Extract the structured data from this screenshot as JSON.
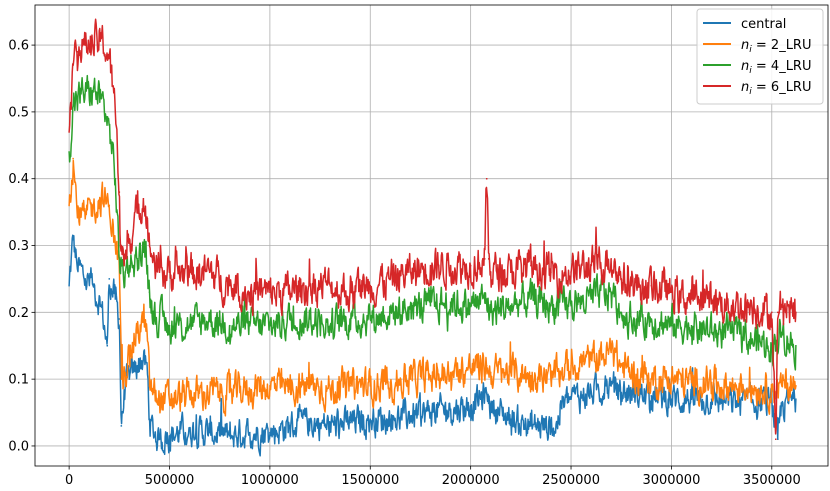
{
  "chart_data": {
    "type": "line",
    "title": "",
    "xlabel": "",
    "ylabel": "",
    "xlim": [
      -170000,
      3780000
    ],
    "ylim": [
      -0.03,
      0.66
    ],
    "grid": true,
    "legend_position": "top-right",
    "x_ticks": [
      0,
      500000,
      1000000,
      1500000,
      2000000,
      2500000,
      3000000,
      3500000
    ],
    "x_tick_labels": [
      "0",
      "500000",
      "1000000",
      "1500000",
      "2000000",
      "2500000",
      "3000000",
      "3500000"
    ],
    "y_ticks": [
      0.0,
      0.1,
      0.2,
      0.3,
      0.4,
      0.5,
      0.6
    ],
    "y_tick_labels": [
      "0.0",
      "0.1",
      "0.2",
      "0.3",
      "0.4",
      "0.5",
      "0.6"
    ],
    "series": [
      {
        "name": "central",
        "legend_html": "central",
        "color": "#1f77b4",
        "noise": 0.018,
        "x": [
          0,
          20000,
          40000,
          80000,
          120000,
          160000,
          190000,
          200000,
          230000,
          250000,
          260000,
          280000,
          300000,
          340000,
          370000,
          390000,
          400000,
          420000,
          450000,
          500000,
          600000,
          700000,
          800000,
          900000,
          1000000,
          1100000,
          1200000,
          1300000,
          1400000,
          1500000,
          1600000,
          1700000,
          1800000,
          1900000,
          2000000,
          2050000,
          2080000,
          2100000,
          2200000,
          2300000,
          2400000,
          2430000,
          2450000,
          2500000,
          2600000,
          2700000,
          2750000,
          2800000,
          2900000,
          3000000,
          3100000,
          3200000,
          3300000,
          3400000,
          3500000,
          3530000,
          3550000,
          3580000,
          3620000
        ],
        "y": [
          0.24,
          0.31,
          0.27,
          0.25,
          0.24,
          0.21,
          0.15,
          0.25,
          0.22,
          0.19,
          0.03,
          0.09,
          0.1,
          0.12,
          0.13,
          0.11,
          0.04,
          0.02,
          0.01,
          0.015,
          0.025,
          0.02,
          0.015,
          0.02,
          0.02,
          0.03,
          0.035,
          0.03,
          0.035,
          0.04,
          0.04,
          0.045,
          0.05,
          0.055,
          0.06,
          0.07,
          0.08,
          0.06,
          0.04,
          0.03,
          0.03,
          0.03,
          0.06,
          0.07,
          0.08,
          0.09,
          0.08,
          0.08,
          0.075,
          0.07,
          0.07,
          0.07,
          0.065,
          0.065,
          0.065,
          0.01,
          0.06,
          0.065,
          0.07
        ]
      },
      {
        "name": "n_i = 2_LRU",
        "legend_html": "<tspan font-style=\"italic\">n</tspan><tspan font-style=\"italic\" font-size=\"9\" dy=\"3\">i</tspan><tspan dy=\"-3\"> = 2_LRU</tspan>",
        "color": "#ff7f0e",
        "noise": 0.02,
        "x": [
          0,
          20000,
          40000,
          80000,
          120000,
          160000,
          200000,
          230000,
          250000,
          260000,
          280000,
          300000,
          340000,
          370000,
          390000,
          400000,
          420000,
          450000,
          500000,
          600000,
          700000,
          800000,
          900000,
          1000000,
          1100000,
          1200000,
          1300000,
          1400000,
          1500000,
          1600000,
          1700000,
          1800000,
          1900000,
          2000000,
          2080000,
          2100000,
          2200000,
          2300000,
          2400000,
          2450000,
          2500000,
          2600000,
          2700000,
          2750000,
          2800000,
          2900000,
          3000000,
          3100000,
          3200000,
          3300000,
          3400000,
          3500000,
          3550000,
          3620000
        ],
        "y": [
          0.36,
          0.43,
          0.35,
          0.34,
          0.36,
          0.37,
          0.36,
          0.3,
          0.27,
          0.1,
          0.11,
          0.14,
          0.17,
          0.19,
          0.16,
          0.09,
          0.08,
          0.07,
          0.07,
          0.075,
          0.08,
          0.08,
          0.085,
          0.09,
          0.085,
          0.09,
          0.085,
          0.09,
          0.09,
          0.095,
          0.1,
          0.105,
          0.11,
          0.115,
          0.12,
          0.11,
          0.11,
          0.105,
          0.1,
          0.11,
          0.12,
          0.13,
          0.14,
          0.12,
          0.11,
          0.1,
          0.1,
          0.095,
          0.095,
          0.09,
          0.09,
          0.085,
          0.09,
          0.09
        ]
      },
      {
        "name": "n_i = 4_LRU",
        "legend_html": "<tspan font-style=\"italic\">n</tspan><tspan font-style=\"italic\" font-size=\"9\" dy=\"3\">i</tspan><tspan dy=\"-3\"> = 4_LRU</tspan>",
        "color": "#2ca02c",
        "noise": 0.02,
        "x": [
          0,
          20000,
          40000,
          80000,
          120000,
          160000,
          200000,
          230000,
          250000,
          260000,
          280000,
          300000,
          340000,
          370000,
          390000,
          400000,
          420000,
          450000,
          500000,
          600000,
          700000,
          800000,
          900000,
          1000000,
          1100000,
          1200000,
          1300000,
          1400000,
          1500000,
          1600000,
          1700000,
          1800000,
          1900000,
          2000000,
          2080000,
          2100000,
          2200000,
          2300000,
          2400000,
          2500000,
          2600000,
          2700000,
          2750000,
          2800000,
          2900000,
          3000000,
          3100000,
          3200000,
          3300000,
          3400000,
          3500000,
          3550000,
          3620000
        ],
        "y": [
          0.44,
          0.51,
          0.52,
          0.53,
          0.53,
          0.52,
          0.48,
          0.4,
          0.28,
          0.27,
          0.26,
          0.27,
          0.28,
          0.29,
          0.27,
          0.23,
          0.2,
          0.19,
          0.18,
          0.18,
          0.19,
          0.18,
          0.18,
          0.18,
          0.19,
          0.19,
          0.18,
          0.19,
          0.19,
          0.2,
          0.205,
          0.21,
          0.215,
          0.21,
          0.22,
          0.2,
          0.21,
          0.22,
          0.21,
          0.21,
          0.22,
          0.23,
          0.2,
          0.19,
          0.19,
          0.18,
          0.18,
          0.17,
          0.17,
          0.16,
          0.15,
          0.17,
          0.15
        ]
      },
      {
        "name": "n_i = 6_LRU",
        "legend_html": "<tspan font-style=\"italic\">n</tspan><tspan font-style=\"italic\" font-size=\"9\" dy=\"3\">i</tspan><tspan dy=\"-3\"> = 6_LRU</tspan>",
        "color": "#d62728",
        "noise": 0.022,
        "x": [
          0,
          20000,
          40000,
          80000,
          120000,
          160000,
          200000,
          230000,
          250000,
          260000,
          280000,
          300000,
          340000,
          370000,
          390000,
          400000,
          420000,
          450000,
          500000,
          600000,
          700000,
          800000,
          900000,
          1000000,
          1100000,
          1200000,
          1300000,
          1400000,
          1500000,
          1600000,
          1700000,
          1800000,
          1900000,
          2000000,
          2070000,
          2080000,
          2090000,
          2100000,
          2200000,
          2300000,
          2400000,
          2500000,
          2600000,
          2700000,
          2750000,
          2800000,
          2900000,
          3000000,
          3100000,
          3200000,
          3300000,
          3400000,
          3500000,
          3520000,
          3530000,
          3550000,
          3580000,
          3620000
        ],
        "y": [
          0.47,
          0.57,
          0.59,
          0.6,
          0.6,
          0.61,
          0.58,
          0.5,
          0.38,
          0.3,
          0.28,
          0.31,
          0.35,
          0.37,
          0.34,
          0.3,
          0.28,
          0.26,
          0.26,
          0.26,
          0.26,
          0.24,
          0.23,
          0.23,
          0.23,
          0.24,
          0.24,
          0.23,
          0.24,
          0.25,
          0.26,
          0.27,
          0.27,
          0.27,
          0.28,
          0.4,
          0.28,
          0.26,
          0.26,
          0.27,
          0.26,
          0.26,
          0.27,
          0.28,
          0.25,
          0.24,
          0.24,
          0.23,
          0.22,
          0.22,
          0.21,
          0.21,
          0.2,
          0.01,
          0.2,
          0.21,
          0.21,
          0.2
        ]
      }
    ]
  }
}
